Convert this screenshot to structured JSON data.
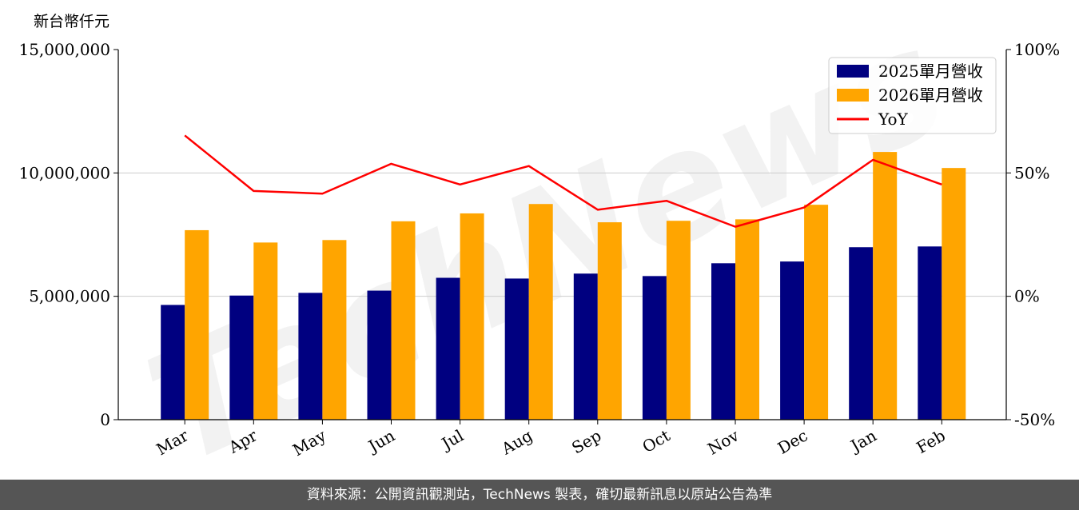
{
  "chart_data": {
    "type": "bar",
    "unit_label": "新台幣仟元",
    "categories": [
      "Mar",
      "Apr",
      "May",
      "Jun",
      "Jul",
      "Aug",
      "Sep",
      "Oct",
      "Nov",
      "Dec",
      "Jan",
      "Feb"
    ],
    "series": [
      {
        "name": "2025單月營收",
        "type": "bar",
        "color": "#000080",
        "values": [
          4650000,
          5030000,
          5140000,
          5230000,
          5750000,
          5720000,
          5920000,
          5820000,
          6340000,
          6410000,
          6990000,
          7020000
        ]
      },
      {
        "name": "2026單月營收",
        "type": "bar",
        "color": "#FFA500",
        "values": [
          7680000,
          7180000,
          7280000,
          8040000,
          8360000,
          8740000,
          8000000,
          8060000,
          8120000,
          8710000,
          10850000,
          10200000
        ]
      },
      {
        "name": "YoY",
        "type": "line",
        "color": "#FF0000",
        "axis": "right",
        "values": [
          65.2,
          42.7,
          41.6,
          53.7,
          45.3,
          52.8,
          35.1,
          38.7,
          28.2,
          36.0,
          55.3,
          45.3
        ]
      }
    ],
    "y_left": {
      "min": 0,
      "max": 15000000,
      "ticks": [
        0,
        5000000,
        10000000,
        15000000
      ],
      "tick_labels": [
        "0",
        "5,000,000",
        "10,000,000",
        "15,000,000"
      ]
    },
    "y_right": {
      "min": -50,
      "max": 100,
      "ticks": [
        -50,
        0,
        50,
        100
      ],
      "tick_labels": [
        "-50%",
        "0%",
        "50%",
        "100%"
      ]
    },
    "grid": "horizontal",
    "legend_position": "top-right",
    "watermark": "TechNews"
  },
  "footer_text": "資料來源：公開資訊觀測站，TechNews 製表，確切最新訊息以原站公告為準"
}
